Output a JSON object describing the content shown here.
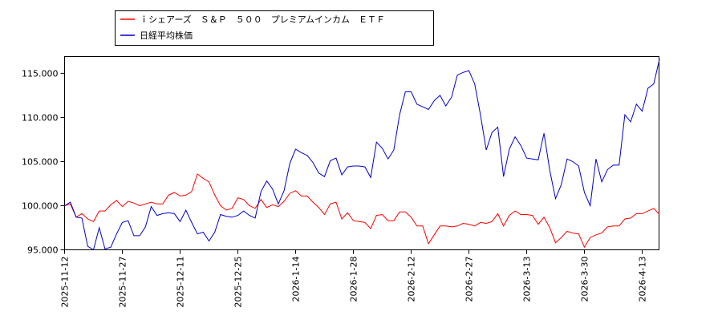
{
  "chart_data": {
    "type": "line",
    "categories": [
      "2025-11-12",
      null,
      null,
      null,
      null,
      null,
      null,
      null,
      null,
      null,
      "2025-11-27",
      null,
      null,
      null,
      null,
      null,
      null,
      null,
      null,
      null,
      "2025-12-11",
      null,
      null,
      null,
      null,
      null,
      null,
      null,
      null,
      null,
      "2025-12-25",
      null,
      null,
      null,
      null,
      null,
      null,
      null,
      null,
      null,
      "2026-1-14",
      null,
      null,
      null,
      null,
      null,
      null,
      null,
      null,
      null,
      "2026-1-28",
      null,
      null,
      null,
      null,
      null,
      null,
      null,
      null,
      null,
      "2026-2-12",
      null,
      null,
      null,
      null,
      null,
      null,
      null,
      null,
      null,
      "2026-2-27",
      null,
      null,
      null,
      null,
      null,
      null,
      null,
      null,
      null,
      "2026-3-13",
      null,
      null,
      null,
      null,
      null,
      null,
      null,
      null,
      null,
      "2026-3-30",
      null,
      null,
      null,
      null,
      null,
      null,
      null,
      null,
      null,
      "2026-4-13",
      null,
      null,
      null
    ],
    "series": [
      {
        "name": "ｉシェアーズ　Ｓ＆Ｐ　５００　プレミアムインカム　ＥＴＦ",
        "color": "#ff0000",
        "values": [
          100.0,
          100.2,
          98.7,
          99.1,
          98.5,
          98.2,
          99.4,
          99.4,
          100.1,
          100.6,
          99.9,
          100.5,
          100.3,
          100.0,
          100.2,
          100.4,
          100.2,
          100.2,
          101.2,
          101.5,
          101.1,
          101.2,
          101.6,
          103.6,
          103.1,
          102.7,
          101.2,
          100.0,
          99.5,
          99.7,
          100.9,
          100.7,
          100.0,
          99.7,
          100.7,
          99.8,
          100.1,
          99.9,
          100.5,
          101.4,
          101.7,
          101.1,
          101.1,
          100.4,
          99.8,
          99.0,
          100.2,
          100.4,
          98.5,
          99.2,
          98.3,
          98.2,
          98.1,
          97.4,
          98.9,
          99.0,
          98.3,
          98.3,
          99.3,
          99.3,
          98.7,
          97.7,
          97.7,
          95.7,
          96.7,
          97.7,
          97.7,
          97.6,
          97.7,
          98.0,
          97.9,
          97.7,
          98.1,
          98.0,
          98.2,
          99.1,
          97.7,
          98.9,
          99.4,
          99.0,
          99.0,
          98.9,
          97.9,
          98.7,
          97.5,
          95.8,
          96.4,
          97.1,
          96.9,
          96.8,
          95.3,
          96.4,
          96.7,
          96.9,
          97.6,
          97.7,
          97.7,
          98.5,
          98.6,
          99.1,
          99.1,
          99.4,
          99.7,
          99.0
        ]
      },
      {
        "name": "日経平均株価",
        "color": "#0000cc",
        "values": [
          100.0,
          100.4,
          98.7,
          98.6,
          95.4,
          95.0,
          97.5,
          95.1,
          95.3,
          96.8,
          98.1,
          98.3,
          96.6,
          96.6,
          97.6,
          99.9,
          98.9,
          99.1,
          99.2,
          99.1,
          98.2,
          99.5,
          98.1,
          96.8,
          97.0,
          96.0,
          97.0,
          99.0,
          98.8,
          98.7,
          98.9,
          99.4,
          98.9,
          98.6,
          101.6,
          102.8,
          101.9,
          100.2,
          101.7,
          104.8,
          106.4,
          106.0,
          105.7,
          104.9,
          103.7,
          103.3,
          105.1,
          105.4,
          103.5,
          104.4,
          104.5,
          104.5,
          104.4,
          103.2,
          107.2,
          106.5,
          105.3,
          106.3,
          110.3,
          112.9,
          112.9,
          111.5,
          111.2,
          110.9,
          111.9,
          112.5,
          111.3,
          112.3,
          114.8,
          115.1,
          115.3,
          113.8,
          110.3,
          106.3,
          108.3,
          108.9,
          103.3,
          106.4,
          107.8,
          106.8,
          105.4,
          105.3,
          105.2,
          108.2,
          104.0,
          100.8,
          102.4,
          105.3,
          105.0,
          104.5,
          101.5,
          100.0,
          105.3,
          102.7,
          104.1,
          104.6,
          104.6,
          110.3,
          109.5,
          111.5,
          110.7,
          113.3,
          113.8,
          116.6
        ]
      }
    ],
    "ylim": [
      95,
      116.9
    ],
    "yticks": [
      {
        "value": 95,
        "label": "95.000"
      },
      {
        "value": 100,
        "label": "100.000"
      },
      {
        "value": 105,
        "label": "105.000"
      },
      {
        "value": 110,
        "label": "110.000"
      },
      {
        "value": 115,
        "label": "115.000"
      }
    ],
    "grid": false,
    "legend": "top-left"
  }
}
